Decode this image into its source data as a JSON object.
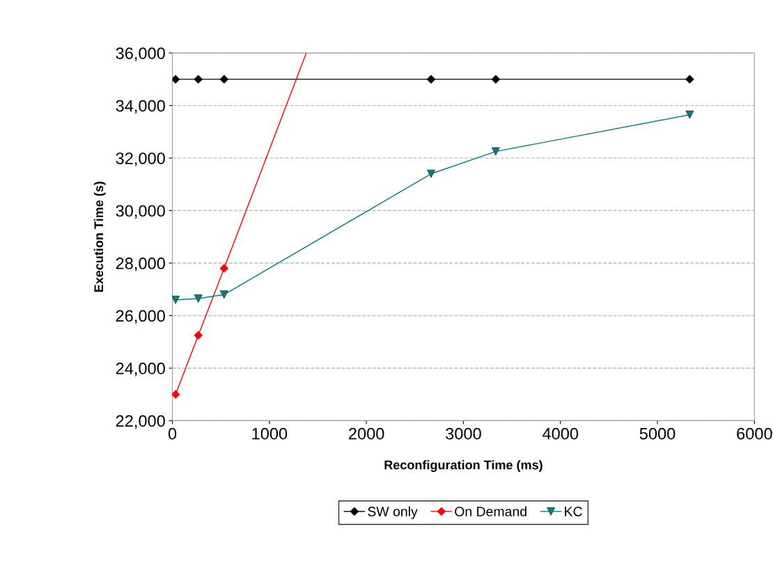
{
  "chart_data": {
    "type": "line",
    "xlabel": "Reconfiguration Time (ms)",
    "ylabel": "Execution Time (s)",
    "xlim": [
      0,
      6000
    ],
    "xticks": [
      0,
      1000,
      2000,
      3000,
      4000,
      5000,
      6000
    ],
    "ylim": [
      22000,
      36000
    ],
    "yticks": [
      {
        "value": 22000,
        "label": "22,000"
      },
      {
        "value": 24000,
        "label": "24,000"
      },
      {
        "value": 26000,
        "label": "26,000"
      },
      {
        "value": 28000,
        "label": "28,000"
      },
      {
        "value": 30000,
        "label": "30,000"
      },
      {
        "value": 32000,
        "label": "32,000"
      },
      {
        "value": 34000,
        "label": "34,000"
      },
      {
        "value": 36000,
        "label": "36,000"
      }
    ],
    "grid": "y",
    "legend": "bottom",
    "line_style": "solid",
    "series": [
      {
        "name": "SW only",
        "color": "#000000",
        "marker": "diamond",
        "x": [
          33,
          267,
          533,
          2667,
          3333,
          5333
        ],
        "values": [
          35000,
          35000,
          35000,
          35000,
          35000,
          35000
        ]
      },
      {
        "name": "On Demand",
        "color": "#ff0000",
        "marker": "diamond",
        "x": [
          33,
          267,
          533
        ],
        "values": [
          23000,
          25250,
          27800
        ]
      },
      {
        "color": "#ff0000",
        "marker": "none",
        "x": [
          533,
          1380
        ],
        "values": [
          27800,
          36000
        ]
      },
      {
        "name": "KC",
        "color": "#008080",
        "marker": "triangle",
        "x": [
          33,
          267,
          533,
          2667,
          3333,
          5333
        ],
        "values": [
          26600,
          26650,
          26800,
          31400,
          32250,
          33650
        ]
      }
    ]
  }
}
